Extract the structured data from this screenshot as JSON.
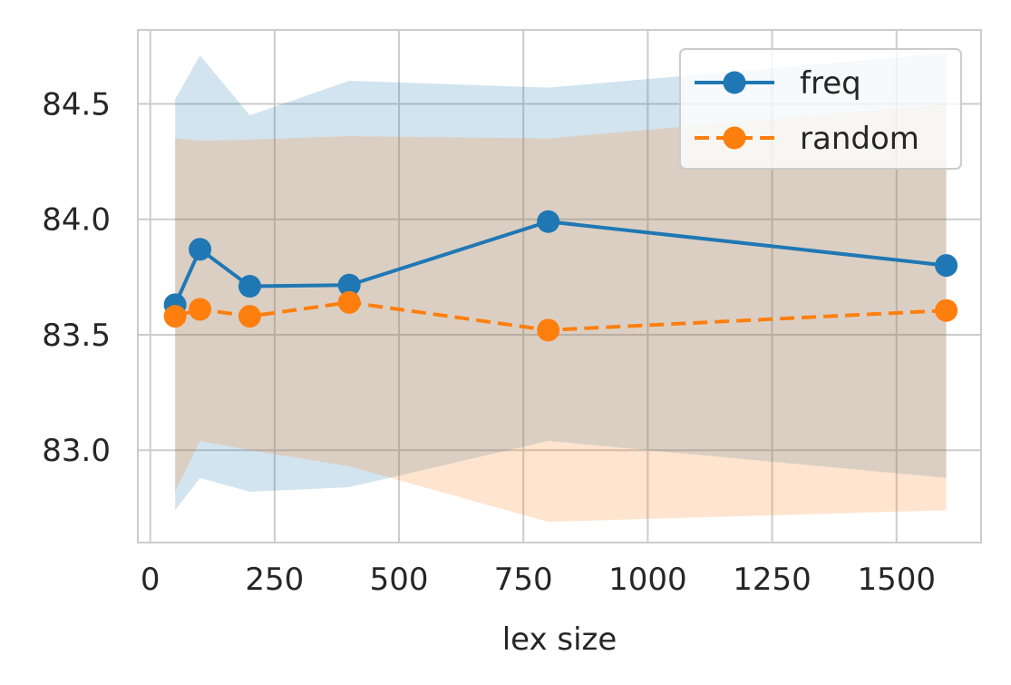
{
  "chart_data": {
    "type": "line",
    "xlabel": "lex size",
    "ylabel": "",
    "title": "",
    "xlim": [
      -25,
      1670
    ],
    "ylim": [
      82.6,
      84.82
    ],
    "xticks": [
      0,
      250,
      500,
      750,
      1000,
      1250,
      1500
    ],
    "xtick_labels": [
      "0",
      "250",
      "500",
      "750",
      "1000",
      "1250",
      "1500"
    ],
    "yticks": [
      83.0,
      83.5,
      84.0,
      84.5
    ],
    "ytick_labels": [
      "83.0",
      "83.5",
      "84.0",
      "84.5"
    ],
    "grid": true,
    "legend_position": "top-right",
    "x": [
      50,
      100,
      200,
      400,
      800,
      1600
    ],
    "series": [
      {
        "name": "freq",
        "color": "#1f77b4",
        "linestyle": "solid",
        "marker": "circle",
        "values": [
          83.63,
          83.87,
          83.71,
          83.715,
          83.99,
          83.8
        ],
        "band_lower": [
          82.74,
          82.88,
          82.82,
          82.84,
          83.04,
          82.88
        ],
        "band_upper": [
          84.52,
          84.71,
          84.45,
          84.6,
          84.57,
          84.72
        ]
      },
      {
        "name": "random",
        "color": "#ff7f0e",
        "linestyle": "dashed",
        "marker": "circle",
        "values": [
          83.58,
          83.61,
          83.58,
          83.64,
          83.52,
          83.605
        ],
        "band_lower": [
          82.82,
          83.04,
          83.0,
          82.93,
          82.69,
          82.74
        ],
        "band_upper": [
          84.35,
          84.34,
          84.345,
          84.36,
          84.35,
          84.5
        ]
      }
    ]
  }
}
